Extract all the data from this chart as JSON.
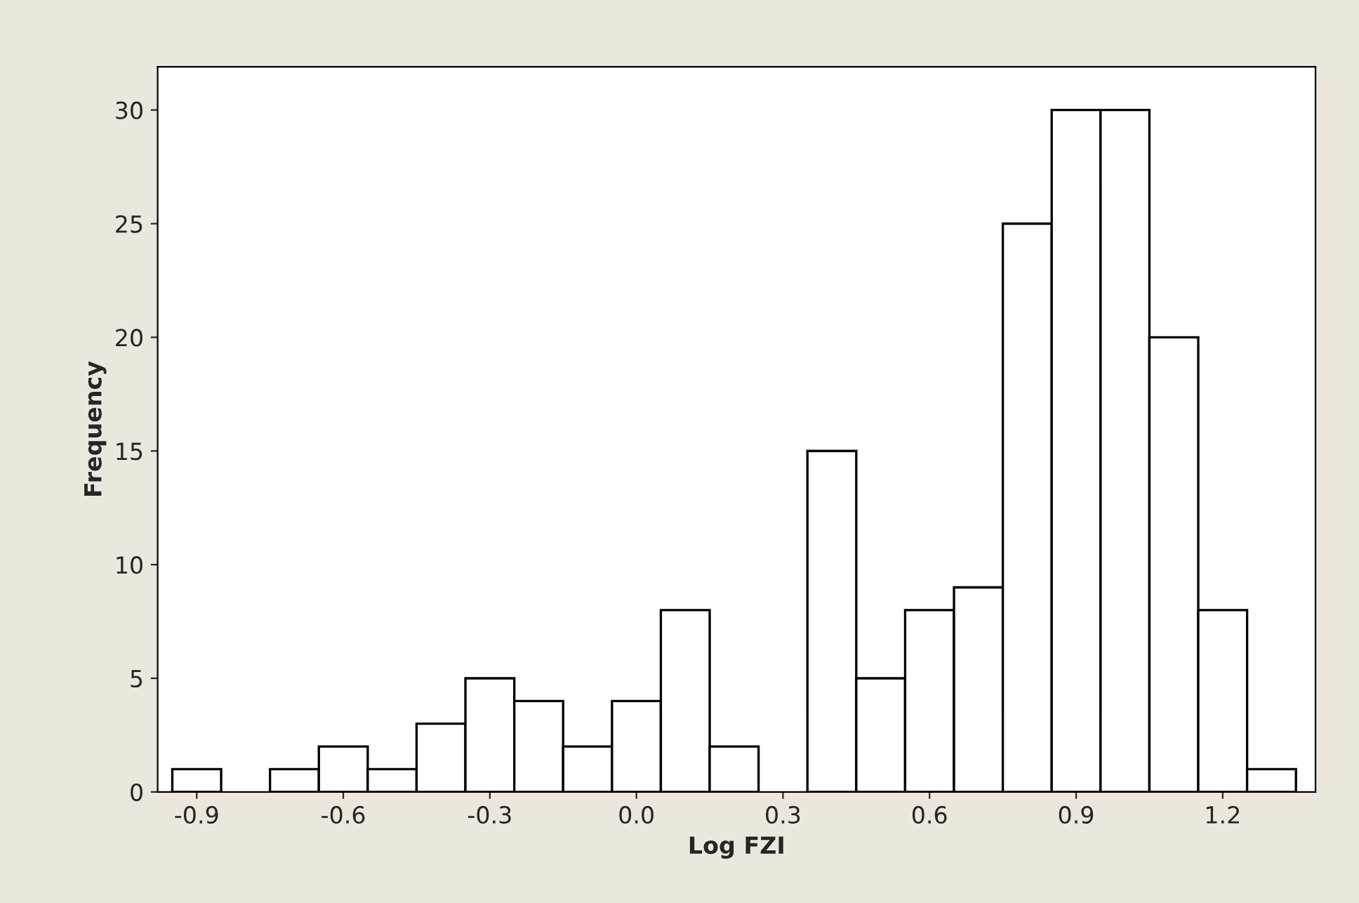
{
  "chart_data": {
    "type": "histogram",
    "xlabel": "Log FZI",
    "ylabel": "Frequency",
    "bins": [
      -0.95,
      -0.85,
      -0.75,
      -0.65,
      -0.55,
      -0.45,
      -0.35,
      -0.25,
      -0.15,
      -0.05,
      0.05,
      0.15,
      0.25,
      0.35,
      0.45,
      0.55,
      0.65,
      0.75,
      0.85,
      0.95,
      1.05,
      1.15,
      1.25,
      1.35
    ],
    "values": [
      1,
      0,
      1,
      2,
      1,
      3,
      5,
      4,
      2,
      4,
      8,
      2,
      0,
      15,
      5,
      8,
      9,
      25,
      30,
      30,
      20,
      8,
      1
    ],
    "color": "#ffffff",
    "xlim": [
      -0.98,
      1.39
    ],
    "ylim": [
      0,
      31.9
    ],
    "xticks": [
      -0.9,
      -0.6,
      -0.3,
      {
        "value": 0,
        "label": "0.0"
      },
      0.3,
      0.6,
      0.9,
      1.2
    ],
    "yticks": [
      0,
      5,
      10,
      15,
      20,
      25,
      30
    ],
    "grid": false
  }
}
